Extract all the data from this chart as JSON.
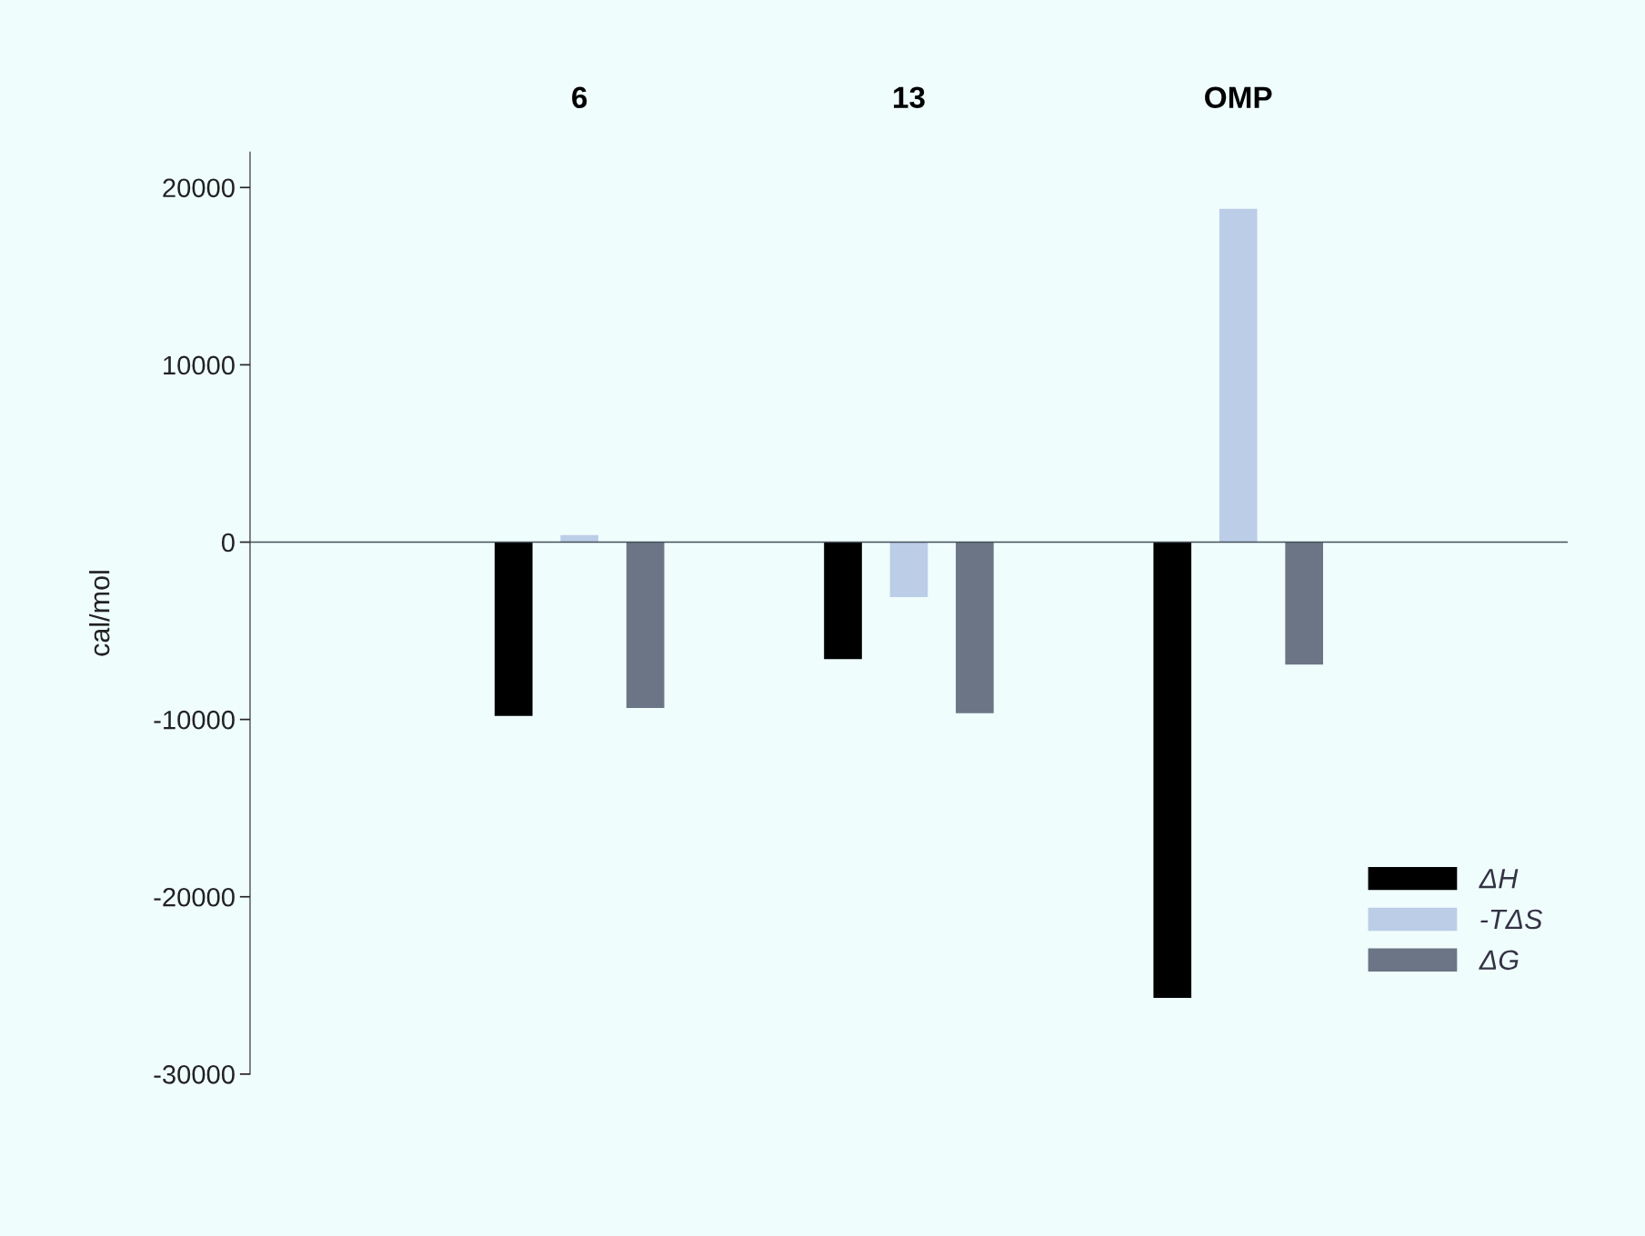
{
  "chart_data": {
    "type": "bar",
    "categories": [
      "6",
      "13",
      "OMP"
    ],
    "ylabel": "cal/mol",
    "ylim": [
      -30000,
      22000
    ],
    "yticks": [
      -30000,
      -20000,
      -10000,
      0,
      10000,
      20000
    ],
    "grid": false,
    "legend": "bottom right",
    "ref_lines": [
      {
        "axis": "y",
        "value": 0,
        "color": "#44505a"
      }
    ],
    "series": [
      {
        "name": "ΔH",
        "color": "#000000",
        "values": [
          -9800,
          -6600,
          -25700
        ]
      },
      {
        "name": "-TΔS",
        "color": "#bccde8",
        "values": [
          400,
          -3100,
          18800
        ]
      },
      {
        "name": "ΔG",
        "color": "#6b7585",
        "values": [
          -9350,
          -9650,
          -6900
        ]
      }
    ]
  }
}
